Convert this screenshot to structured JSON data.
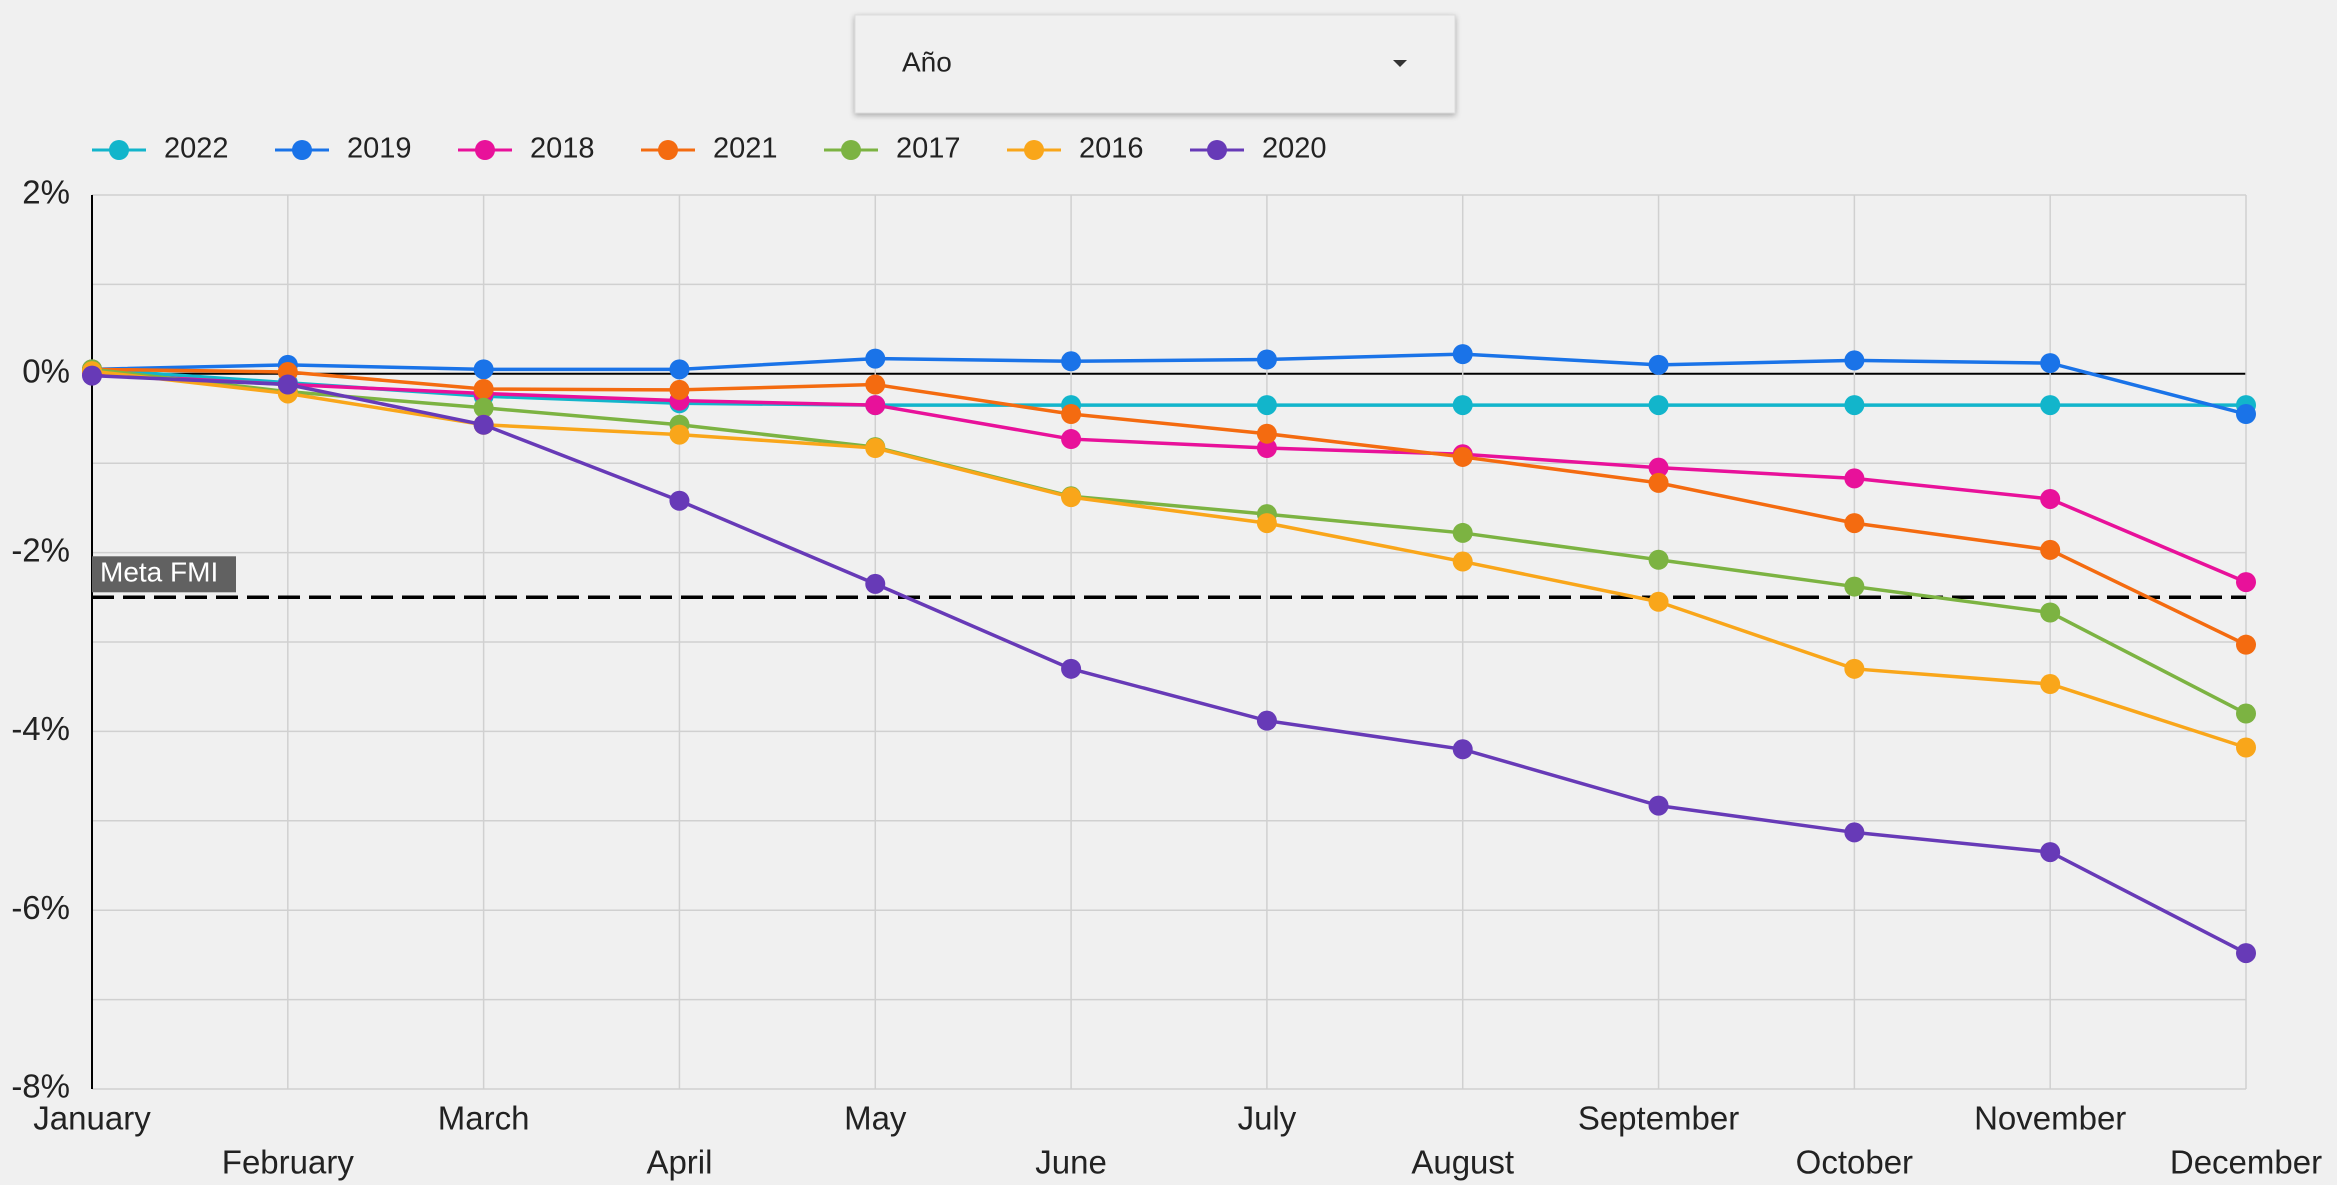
{
  "dropdown": {
    "label": "Año"
  },
  "chart_data": {
    "type": "line",
    "categories": [
      "January",
      "February",
      "March",
      "April",
      "May",
      "June",
      "July",
      "August",
      "September",
      "October",
      "November",
      "December"
    ],
    "series": [
      {
        "name": "2022",
        "color": "#12b5cb",
        "values": [
          0.05,
          -0.1,
          -0.25,
          -0.33,
          -0.35,
          -0.35,
          -0.35,
          -0.35,
          -0.35,
          -0.35,
          -0.35,
          -0.35
        ]
      },
      {
        "name": "2019",
        "color": "#1a73e8",
        "values": [
          0.05,
          0.1,
          0.05,
          0.05,
          0.17,
          0.14,
          0.16,
          0.22,
          0.1,
          0.15,
          0.12,
          -0.45
        ]
      },
      {
        "name": "2018",
        "color": "#e8119a",
        "values": [
          0.0,
          -0.12,
          -0.22,
          -0.3,
          -0.35,
          -0.73,
          -0.83,
          -0.9,
          -1.05,
          -1.17,
          -1.4,
          -2.33
        ]
      },
      {
        "name": "2021",
        "color": "#f46b10",
        "values": [
          0.05,
          0.02,
          -0.17,
          -0.18,
          -0.12,
          -0.45,
          -0.67,
          -0.93,
          -1.22,
          -1.67,
          -1.97,
          -3.03
        ]
      },
      {
        "name": "2017",
        "color": "#7cb342",
        "values": [
          0.05,
          -0.2,
          -0.38,
          -0.57,
          -0.82,
          -1.37,
          -1.57,
          -1.78,
          -2.08,
          -2.38,
          -2.67,
          -3.8
        ]
      },
      {
        "name": "2016",
        "color": "#f9a61a",
        "values": [
          0.03,
          -0.22,
          -0.57,
          -0.68,
          -0.83,
          -1.38,
          -1.67,
          -2.1,
          -2.55,
          -3.3,
          -3.47,
          -4.18
        ]
      },
      {
        "name": "2020",
        "color": "#673ab7",
        "values": [
          -0.02,
          -0.12,
          -0.57,
          -1.42,
          -2.35,
          -3.3,
          -3.88,
          -4.2,
          -4.83,
          -5.13,
          -5.35,
          -6.48
        ]
      }
    ],
    "ylim": [
      -8,
      2
    ],
    "yticks": [
      {
        "value": 2,
        "label": "2%"
      },
      {
        "value": 0,
        "label": "0%"
      },
      {
        "value": -2,
        "label": "-2%"
      },
      {
        "value": -4,
        "label": "-4%"
      },
      {
        "value": -6,
        "label": "-6%"
      },
      {
        "value": -8,
        "label": "-8%"
      }
    ],
    "y_minor_ticks": [
      1,
      -1,
      -3,
      -5,
      -7
    ],
    "grid": true,
    "reference_line": {
      "value": -2.5,
      "label": "Meta FMI"
    },
    "legend": "top"
  }
}
